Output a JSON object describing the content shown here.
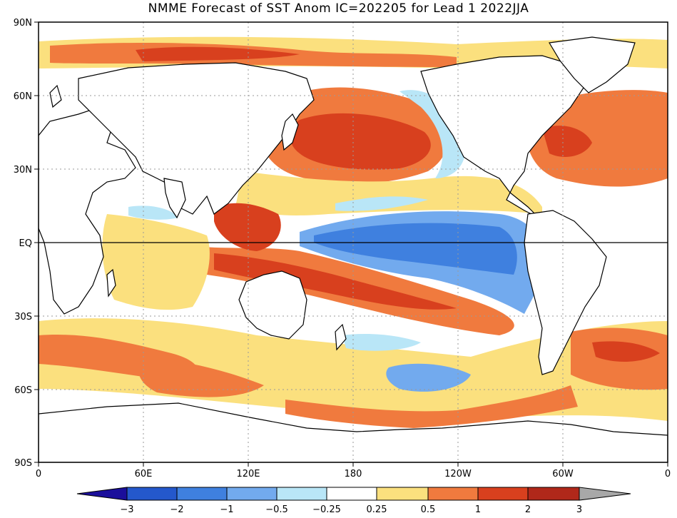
{
  "title": "NMME Forecast of SST Anom IC=202205 for Lead 1 2022JJA",
  "lat_labels": [
    "90N",
    "60N",
    "30N",
    "EQ",
    "30S",
    "60S",
    "90S"
  ],
  "lon_labels": [
    "0",
    "60E",
    "120E",
    "180",
    "120W",
    "60W",
    "0"
  ],
  "colorbar": {
    "labels": [
      "−3",
      "−2",
      "−1",
      "−0.5",
      "−0.25",
      "0.25",
      "0.5",
      "1",
      "2",
      "3"
    ],
    "colors": [
      "#1b0f9b",
      "#2458cc",
      "#3f80df",
      "#72aaee",
      "#b9e6f7",
      "#ffffff",
      "#fbe07e",
      "#f07a3e",
      "#d8401e",
      "#b0281a",
      "#7a4334",
      "#a8a8a8"
    ]
  },
  "anomaly_colors": {
    "strong_cold": "#3f80df",
    "cold": "#72aaee",
    "weak_cold": "#b9e6f7",
    "weak_warm": "#fbe07e",
    "warm": "#f07a3e",
    "hot": "#d8401e",
    "very_hot": "#7a4334",
    "extreme": "#a8a8a8"
  }
}
